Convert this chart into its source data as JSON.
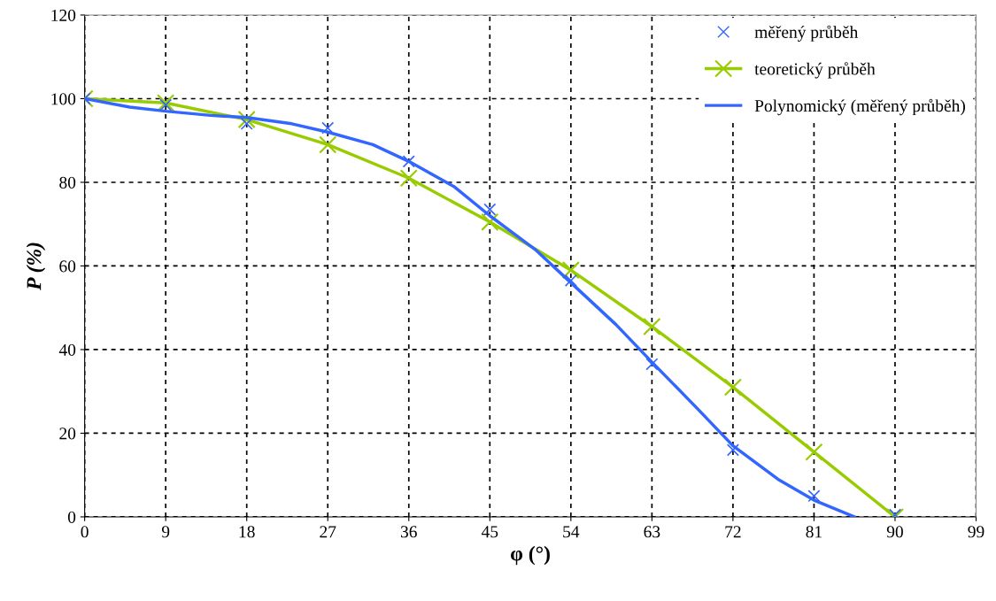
{
  "chart_data": {
    "type": "line",
    "xlabel": "φ (°)",
    "ylabel": "P (%)",
    "xlim": [
      0,
      99
    ],
    "xticks": [
      0,
      9,
      18,
      27,
      36,
      45,
      54,
      63,
      72,
      81,
      90,
      99
    ],
    "ylim": [
      0,
      120
    ],
    "yticks": [
      0,
      20,
      40,
      60,
      80,
      100,
      120
    ],
    "grid": true,
    "legend": "top right",
    "series": [
      {
        "name": "měřený průběh",
        "type": "scatter",
        "marker": "cross",
        "color": "#3366ff",
        "x": [
          0,
          9,
          18,
          27,
          36,
          45,
          54,
          63,
          72,
          81,
          90
        ],
        "values": [
          100,
          98.5,
          94,
          93,
          85,
          73.5,
          56.5,
          36.5,
          16,
          5,
          0.5
        ]
      },
      {
        "name": "teoretický průběh",
        "marker": "cross",
        "color": "#99cc00",
        "x": [
          0,
          9,
          18,
          27,
          36,
          45,
          54,
          63,
          72,
          81,
          90
        ],
        "values": [
          100,
          99,
          95,
          89,
          81,
          70.5,
          59,
          45.5,
          31,
          15.5,
          0
        ]
      },
      {
        "name": "Polynomický (měřený průběh)",
        "marker": "none",
        "color": "#3366ff",
        "x": [
          0,
          5,
          9,
          14,
          18,
          23,
          27,
          32,
          36,
          41,
          45,
          50,
          54,
          59,
          63,
          68,
          72,
          77,
          81,
          85.5
        ],
        "values": [
          100,
          98,
          97,
          96,
          95.5,
          94,
          92,
          89,
          85,
          79,
          72,
          64,
          56,
          46,
          37,
          26,
          17,
          9,
          4,
          0
        ]
      }
    ]
  }
}
